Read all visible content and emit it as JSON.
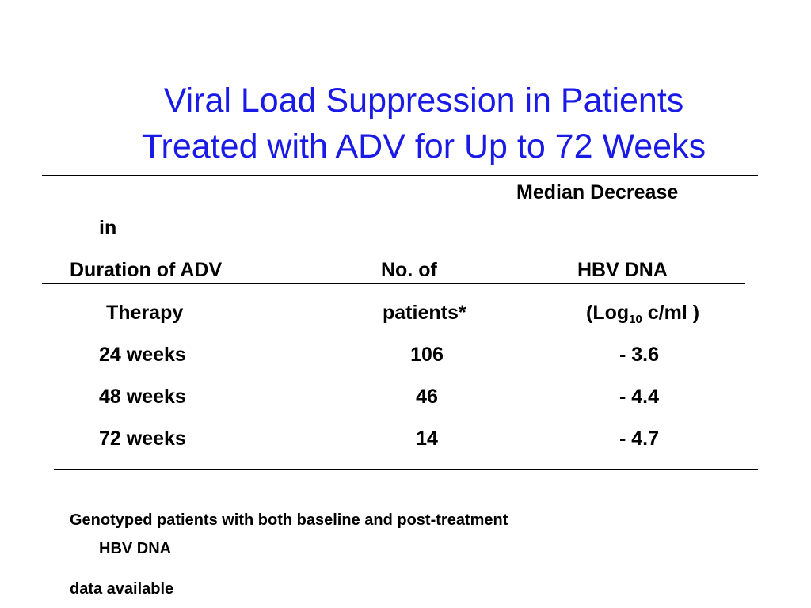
{
  "title": {
    "line1": "Viral Load Suppression in Patients",
    "line2": "Treated with ADV for Up to 72 Weeks",
    "color": "#1a1ae6"
  },
  "table": {
    "headers": {
      "median_decrease": "Median Decrease",
      "median_decrease_wrap": "in",
      "duration": "Duration of ADV",
      "num_patients": "No. of",
      "hbv_dna": "HBV DNA",
      "therapy": "Therapy",
      "patients": "patients*",
      "log_prefix": "(Log",
      "log_subscript": "10",
      "log_suffix": " c/ml )"
    },
    "rows": [
      {
        "duration": "24 weeks",
        "patients": "106",
        "decrease": "- 3.6"
      },
      {
        "duration": "48 weeks",
        "patients": "46",
        "decrease": "- 4.4"
      },
      {
        "duration": "72 weeks",
        "patients": "14",
        "decrease": "- 4.7"
      }
    ]
  },
  "footnote": {
    "line1": "Genotyped patients with both baseline and post-treatment",
    "line2": "HBV DNA",
    "line3": "data available"
  }
}
